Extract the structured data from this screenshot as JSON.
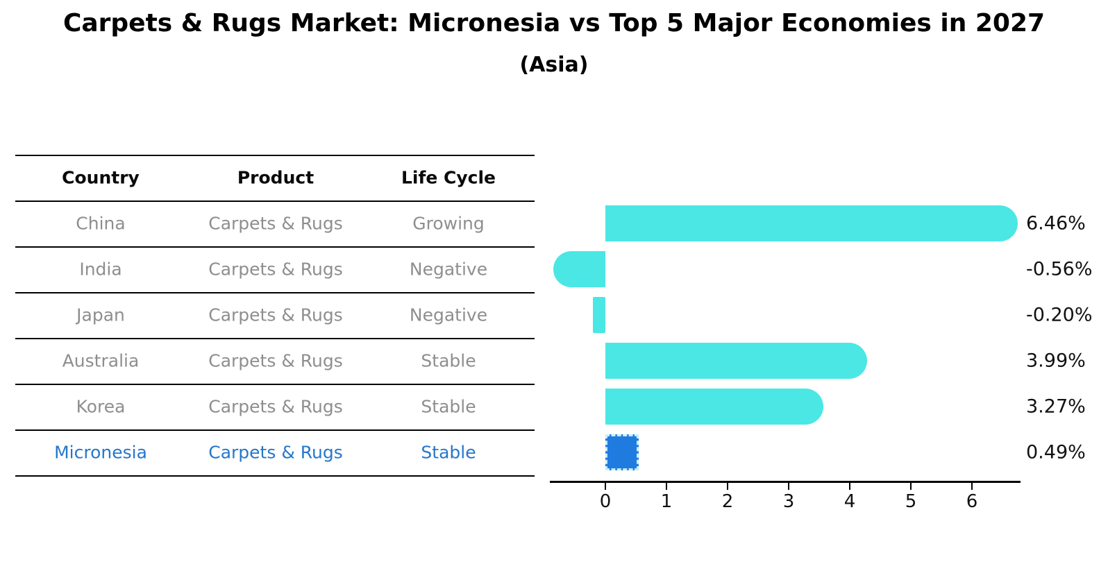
{
  "title": "Carpets & Rugs Market: Micronesia vs Top 5 Major Economies in 2027",
  "subtitle": "(Asia)",
  "table": {
    "columns": [
      "Country",
      "Product",
      "Life Cycle"
    ],
    "rows": [
      {
        "country": "China",
        "product": "Carpets & Rugs",
        "life_cycle": "Growing",
        "highlight": false
      },
      {
        "country": "India",
        "product": "Carpets & Rugs",
        "life_cycle": "Negative",
        "highlight": false
      },
      {
        "country": "Japan",
        "product": "Carpets & Rugs",
        "life_cycle": "Negative",
        "highlight": false
      },
      {
        "country": "Australia",
        "product": "Carpets & Rugs",
        "life_cycle": "Stable",
        "highlight": false
      },
      {
        "country": "Korea",
        "product": "Carpets & Rugs",
        "life_cycle": "Stable",
        "highlight": false
      },
      {
        "country": "Micronesia",
        "product": "Carpets & Rugs",
        "life_cycle": "Stable",
        "highlight": true
      }
    ]
  },
  "chart_data": {
    "type": "bar",
    "orientation": "horizontal",
    "title": "Carpets & Rugs Market: Micronesia vs Top 5 Major Economies in 2027 (Asia)",
    "categories": [
      "China",
      "India",
      "Japan",
      "Australia",
      "Korea",
      "Micronesia"
    ],
    "values": [
      6.46,
      -0.56,
      -0.2,
      3.99,
      3.27,
      0.49
    ],
    "value_labels": [
      "6.46%",
      "-0.56%",
      "-0.20%",
      "3.99%",
      "3.27%",
      "0.49%"
    ],
    "xticks": [
      "0",
      "1",
      "2",
      "3",
      "4",
      "5",
      "6"
    ],
    "xlim": [
      -0.95,
      6.8
    ],
    "grid": false,
    "legend": null,
    "colors": {
      "bar": "#4AE7E4",
      "highlight_bar": "#1F7BE0",
      "highlight_edge": "#C9EDF8",
      "row_text": "#8E8E8E",
      "highlight_text": "#2577CB",
      "axis": "#000000",
      "label_text": "#111111"
    }
  }
}
